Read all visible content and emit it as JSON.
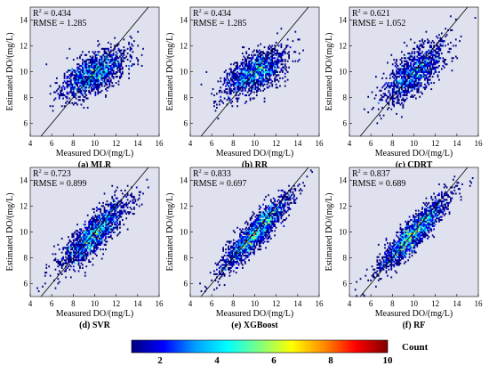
{
  "figure": {
    "colorbar": {
      "label": "Count",
      "ticks": [
        "2",
        "4",
        "6",
        "8",
        "10"
      ],
      "range": [
        1,
        10
      ],
      "colorscale": [
        "#00007f",
        "#0000ff",
        "#00a0ff",
        "#00ffff",
        "#7fff7f",
        "#ffff00",
        "#ff8c00",
        "#ff0000",
        "#7f0000"
      ]
    },
    "background": "#dfe2ee"
  },
  "chart_data": [
    {
      "type": "heatmap",
      "panel": "(a) MLR",
      "xlabel": "Measured DO/(mg/L)",
      "ylabel": "Estimated DO/(mg/L)",
      "xlim": [
        4,
        16
      ],
      "ylim": [
        5,
        15
      ],
      "xticks": [
        "4",
        "6",
        "8",
        "10",
        "12",
        "14",
        "16"
      ],
      "yticks": [
        "6",
        "8",
        "10",
        "12",
        "14"
      ],
      "stats": {
        "r2_label": "R",
        "r2_value": "= 0.434",
        "rmse": "RMSE = 1.285"
      },
      "reference_line": "1:1",
      "cloud": {
        "cx": 10.0,
        "cy": 9.9,
        "sx": 1.45,
        "sy": 0.95,
        "rho": 0.62,
        "n": 1500,
        "seed": 11
      }
    },
    {
      "type": "heatmap",
      "panel": "(b) RR",
      "xlabel": "Measured DO/(mg/L)",
      "ylabel": "Estimated DO/(mg/L)",
      "xlim": [
        4,
        16
      ],
      "ylim": [
        5,
        15
      ],
      "xticks": [
        "4",
        "6",
        "8",
        "10",
        "12",
        "14",
        "16"
      ],
      "yticks": [
        "6",
        "8",
        "10",
        "12",
        "14"
      ],
      "stats": {
        "r2_label": "R",
        "r2_value": "= 0.434",
        "rmse": "RMSE = 1.285"
      },
      "reference_line": "1:1",
      "cloud": {
        "cx": 10.0,
        "cy": 9.9,
        "sx": 1.45,
        "sy": 0.95,
        "rho": 0.62,
        "n": 1500,
        "seed": 12
      }
    },
    {
      "type": "heatmap",
      "panel": "(c) CDRT",
      "xlabel": "Measured DO/(mg/L)",
      "ylabel": "Estimated DO/(mg/L)",
      "xlim": [
        4,
        16
      ],
      "ylim": [
        5,
        15
      ],
      "xticks": [
        "4",
        "6",
        "8",
        "10",
        "12",
        "14",
        "16"
      ],
      "yticks": [
        "6",
        "8",
        "10",
        "12",
        "14"
      ],
      "stats": {
        "r2_label": "R",
        "r2_value": "= 0.621",
        "rmse": "RMSE = 1.052"
      },
      "reference_line": "1:1",
      "cloud": {
        "cx": 10.1,
        "cy": 10.0,
        "sx": 1.5,
        "sy": 1.25,
        "rho": 0.74,
        "n": 1300,
        "seed": 13
      }
    },
    {
      "type": "heatmap",
      "panel": "(d) SVR",
      "xlabel": "Measured DO/(mg/L)",
      "ylabel": "Estimated DO/(mg/L)",
      "xlim": [
        4,
        16
      ],
      "ylim": [
        5,
        15
      ],
      "xticks": [
        "4",
        "6",
        "8",
        "10",
        "12",
        "14",
        "16"
      ],
      "yticks": [
        "6",
        "8",
        "10",
        "12",
        "14"
      ],
      "stats": {
        "r2_label": "R",
        "r2_value": "= 0.723",
        "rmse": "RMSE = 0.899"
      },
      "reference_line": "1:1",
      "cloud": {
        "cx": 10.0,
        "cy": 9.9,
        "sx": 1.55,
        "sy": 1.35,
        "rho": 0.84,
        "n": 1700,
        "seed": 14
      }
    },
    {
      "type": "heatmap",
      "panel": "(e) XGBoost",
      "xlabel": "Measured DO/(mg/L)",
      "ylabel": "Estimated DO/(mg/L)",
      "xlim": [
        4,
        16
      ],
      "ylim": [
        5,
        15
      ],
      "xticks": [
        "4",
        "6",
        "8",
        "10",
        "12",
        "14",
        "16"
      ],
      "yticks": [
        "6",
        "8",
        "10",
        "12",
        "14"
      ],
      "stats": {
        "r2_label": "R",
        "r2_value": "= 0.833",
        "rmse": "RMSE = 0.697"
      },
      "reference_line": "1:1",
      "cloud": {
        "cx": 10.0,
        "cy": 9.9,
        "sx": 1.6,
        "sy": 1.45,
        "rho": 0.91,
        "n": 1900,
        "seed": 15
      }
    },
    {
      "type": "heatmap",
      "panel": "(f) RF",
      "xlabel": "Measured DO/(mg/L)",
      "ylabel": "Estimated DO/(mg/L)",
      "xlim": [
        4,
        16
      ],
      "ylim": [
        5,
        15
      ],
      "xticks": [
        "4",
        "6",
        "8",
        "10",
        "12",
        "14",
        "16"
      ],
      "yticks": [
        "6",
        "8",
        "10",
        "12",
        "14"
      ],
      "stats": {
        "r2_label": "R",
        "r2_value": "= 0.837",
        "rmse": "RMSE = 0.689"
      },
      "reference_line": "1:1",
      "cloud": {
        "cx": 10.0,
        "cy": 9.9,
        "sx": 1.6,
        "sy": 1.45,
        "rho": 0.915,
        "n": 1900,
        "seed": 16
      }
    }
  ]
}
